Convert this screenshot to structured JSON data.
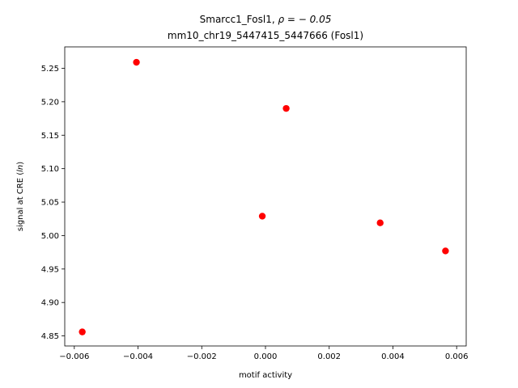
{
  "chart_data": {
    "type": "scatter",
    "title_line1_prefix": "Smarcc1_Fosl1, ",
    "title_line1_rho": "ρ = − 0.05",
    "title_line2": "mm10_chr19_5447415_5447666 (Fosl1)",
    "xlabel": "motif activity",
    "ylabel_prefix": "signal at CRE (",
    "ylabel_italic": "ln",
    "ylabel_suffix": ")",
    "marker_color": "#ff0000",
    "xlim": [
      -0.0063,
      0.0063
    ],
    "ylim": [
      4.835,
      5.282
    ],
    "x_ticks": [
      -0.006,
      -0.004,
      -0.002,
      0.0,
      0.002,
      0.004,
      0.006
    ],
    "x_tick_labels": [
      "−0.006",
      "−0.004",
      "−0.002",
      "0.000",
      "0.002",
      "0.004",
      "0.006"
    ],
    "y_ticks": [
      4.85,
      4.9,
      4.95,
      5.0,
      5.05,
      5.1,
      5.15,
      5.2,
      5.25
    ],
    "y_tick_labels": [
      "4.85",
      "4.90",
      "4.95",
      "5.00",
      "5.05",
      "5.10",
      "5.15",
      "5.20",
      "5.25"
    ],
    "points": [
      {
        "x": -0.00575,
        "y": 4.856
      },
      {
        "x": -0.00405,
        "y": 5.259
      },
      {
        "x": -0.0001,
        "y": 5.029
      },
      {
        "x": 0.00065,
        "y": 5.19
      },
      {
        "x": 0.0036,
        "y": 5.019
      },
      {
        "x": 0.00565,
        "y": 4.977
      }
    ],
    "grid": false,
    "legend": "none"
  }
}
